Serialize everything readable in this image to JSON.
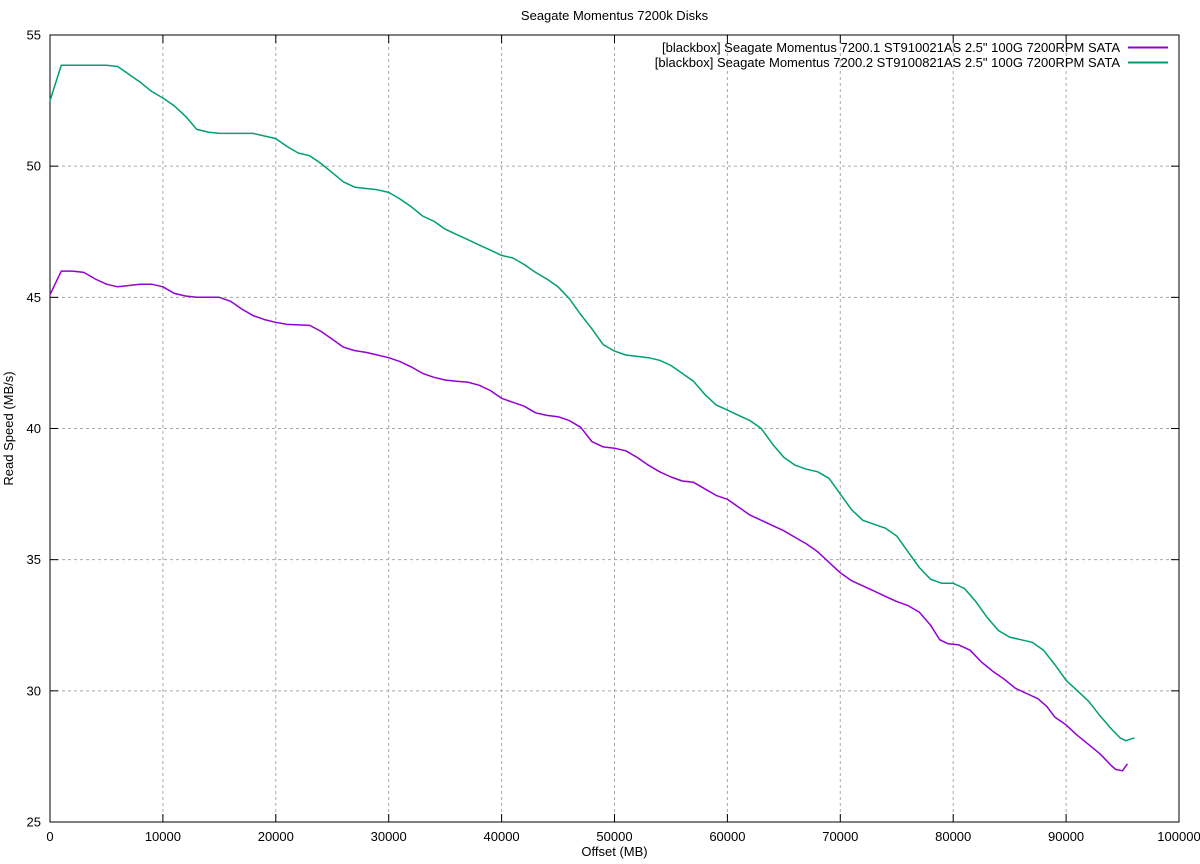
{
  "chart_data": {
    "type": "line",
    "title": "Seagate Momentus 7200k Disks",
    "xlabel": "Offset (MB)",
    "ylabel": "Read Speed (MB/s)",
    "xlim": [
      0,
      100000
    ],
    "ylim": [
      25,
      55
    ],
    "xticks": [
      0,
      10000,
      20000,
      30000,
      40000,
      50000,
      60000,
      70000,
      80000,
      90000,
      100000
    ],
    "yticks": [
      25,
      30,
      35,
      40,
      45,
      50,
      55
    ],
    "grid": true,
    "legend_position": "top-right",
    "colors": {
      "background": "#ffffff",
      "border": "#000000",
      "grid": "#a8a8a8"
    },
    "series": [
      {
        "name": "[blackbox] Seagate Momentus 7200.1 ST910021AS 2.5\" 100G 7200RPM SATA",
        "color": "#9400d3",
        "points": [
          [
            0,
            45.1
          ],
          [
            1000,
            46.0
          ],
          [
            2000,
            46.0
          ],
          [
            3000,
            45.95
          ],
          [
            4000,
            45.7
          ],
          [
            5000,
            45.5
          ],
          [
            6000,
            45.4
          ],
          [
            7000,
            45.45
          ],
          [
            8000,
            45.5
          ],
          [
            9000,
            45.5
          ],
          [
            10000,
            45.4
          ],
          [
            11000,
            45.15
          ],
          [
            12000,
            45.05
          ],
          [
            13000,
            45.0
          ],
          [
            14000,
            45.0
          ],
          [
            15000,
            45.0
          ],
          [
            16000,
            44.85
          ],
          [
            17000,
            44.55
          ],
          [
            18000,
            44.3
          ],
          [
            19000,
            44.15
          ],
          [
            20000,
            44.05
          ],
          [
            21000,
            43.97
          ],
          [
            22000,
            43.95
          ],
          [
            23000,
            43.93
          ],
          [
            24000,
            43.7
          ],
          [
            25000,
            43.4
          ],
          [
            26000,
            43.1
          ],
          [
            27000,
            42.97
          ],
          [
            28000,
            42.9
          ],
          [
            29000,
            42.8
          ],
          [
            30000,
            42.7
          ],
          [
            31000,
            42.55
          ],
          [
            32000,
            42.35
          ],
          [
            33000,
            42.1
          ],
          [
            34000,
            41.95
          ],
          [
            35000,
            41.85
          ],
          [
            36000,
            41.8
          ],
          [
            37000,
            41.77
          ],
          [
            38000,
            41.65
          ],
          [
            39000,
            41.45
          ],
          [
            40000,
            41.15
          ],
          [
            41000,
            41.0
          ],
          [
            42000,
            40.85
          ],
          [
            43000,
            40.6
          ],
          [
            44000,
            40.5
          ],
          [
            45000,
            40.45
          ],
          [
            46000,
            40.3
          ],
          [
            47000,
            40.05
          ],
          [
            48000,
            39.5
          ],
          [
            49000,
            39.3
          ],
          [
            50000,
            39.25
          ],
          [
            51000,
            39.15
          ],
          [
            52000,
            38.9
          ],
          [
            53000,
            38.6
          ],
          [
            54000,
            38.35
          ],
          [
            55000,
            38.15
          ],
          [
            56000,
            38.0
          ],
          [
            57000,
            37.95
          ],
          [
            58000,
            37.7
          ],
          [
            59000,
            37.45
          ],
          [
            60000,
            37.3
          ],
          [
            61000,
            37.0
          ],
          [
            62000,
            36.7
          ],
          [
            63000,
            36.5
          ],
          [
            64000,
            36.3
          ],
          [
            65000,
            36.1
          ],
          [
            66000,
            35.85
          ],
          [
            67000,
            35.6
          ],
          [
            68000,
            35.3
          ],
          [
            69000,
            34.9
          ],
          [
            70000,
            34.5
          ],
          [
            71000,
            34.2
          ],
          [
            72000,
            34.0
          ],
          [
            73000,
            33.8
          ],
          [
            74000,
            33.6
          ],
          [
            75000,
            33.4
          ],
          [
            76000,
            33.25
          ],
          [
            77000,
            33.0
          ],
          [
            78000,
            32.5
          ],
          [
            78800,
            31.95
          ],
          [
            79500,
            31.8
          ],
          [
            80500,
            31.75
          ],
          [
            81500,
            31.55
          ],
          [
            82500,
            31.1
          ],
          [
            83500,
            30.75
          ],
          [
            84500,
            30.45
          ],
          [
            85500,
            30.1
          ],
          [
            86500,
            29.9
          ],
          [
            87500,
            29.7
          ],
          [
            88300,
            29.4
          ],
          [
            89000,
            29.0
          ],
          [
            90000,
            28.7
          ],
          [
            91000,
            28.3
          ],
          [
            92000,
            27.95
          ],
          [
            93000,
            27.6
          ],
          [
            94000,
            27.15
          ],
          [
            94400,
            27.0
          ],
          [
            95000,
            26.95
          ],
          [
            95400,
            27.2
          ]
        ]
      },
      {
        "name": "[blackbox] Seagate Momentus 7200.2 ST9100821AS 2.5\" 100G 7200RPM SATA",
        "color": "#009e73",
        "points": [
          [
            0,
            52.5
          ],
          [
            1000,
            53.85
          ],
          [
            2000,
            53.85
          ],
          [
            3000,
            53.85
          ],
          [
            4000,
            53.85
          ],
          [
            5000,
            53.85
          ],
          [
            6000,
            53.8
          ],
          [
            7000,
            53.5
          ],
          [
            8000,
            53.2
          ],
          [
            9000,
            52.85
          ],
          [
            10000,
            52.6
          ],
          [
            11000,
            52.3
          ],
          [
            12000,
            51.9
          ],
          [
            13000,
            51.4
          ],
          [
            14000,
            51.3
          ],
          [
            15000,
            51.25
          ],
          [
            16000,
            51.25
          ],
          [
            17000,
            51.25
          ],
          [
            18000,
            51.25
          ],
          [
            19000,
            51.15
          ],
          [
            20000,
            51.05
          ],
          [
            21000,
            50.75
          ],
          [
            22000,
            50.5
          ],
          [
            23000,
            50.4
          ],
          [
            24000,
            50.1
          ],
          [
            25000,
            49.75
          ],
          [
            26000,
            49.4
          ],
          [
            27000,
            49.2
          ],
          [
            28000,
            49.15
          ],
          [
            29000,
            49.1
          ],
          [
            30000,
            49.0
          ],
          [
            31000,
            48.75
          ],
          [
            32000,
            48.45
          ],
          [
            33000,
            48.1
          ],
          [
            34000,
            47.9
          ],
          [
            35000,
            47.6
          ],
          [
            36000,
            47.4
          ],
          [
            37000,
            47.2
          ],
          [
            38000,
            47.0
          ],
          [
            39000,
            46.8
          ],
          [
            40000,
            46.6
          ],
          [
            41000,
            46.5
          ],
          [
            42000,
            46.25
          ],
          [
            43000,
            45.95
          ],
          [
            44000,
            45.7
          ],
          [
            45000,
            45.4
          ],
          [
            46000,
            44.95
          ],
          [
            47000,
            44.35
          ],
          [
            48000,
            43.8
          ],
          [
            49000,
            43.2
          ],
          [
            50000,
            42.95
          ],
          [
            51000,
            42.8
          ],
          [
            52000,
            42.75
          ],
          [
            53000,
            42.7
          ],
          [
            54000,
            42.6
          ],
          [
            55000,
            42.4
          ],
          [
            56000,
            42.1
          ],
          [
            57000,
            41.8
          ],
          [
            58000,
            41.3
          ],
          [
            59000,
            40.9
          ],
          [
            60000,
            40.7
          ],
          [
            61000,
            40.5
          ],
          [
            62000,
            40.3
          ],
          [
            63000,
            40.0
          ],
          [
            64000,
            39.4
          ],
          [
            65000,
            38.9
          ],
          [
            66000,
            38.6
          ],
          [
            67000,
            38.45
          ],
          [
            68000,
            38.35
          ],
          [
            69000,
            38.1
          ],
          [
            70000,
            37.5
          ],
          [
            71000,
            36.9
          ],
          [
            72000,
            36.5
          ],
          [
            73000,
            36.35
          ],
          [
            74000,
            36.2
          ],
          [
            75000,
            35.9
          ],
          [
            76000,
            35.3
          ],
          [
            77000,
            34.7
          ],
          [
            78000,
            34.25
          ],
          [
            79000,
            34.1
          ],
          [
            80000,
            34.1
          ],
          [
            81000,
            33.9
          ],
          [
            82000,
            33.4
          ],
          [
            83000,
            32.8
          ],
          [
            84000,
            32.3
          ],
          [
            85000,
            32.05
          ],
          [
            86000,
            31.95
          ],
          [
            87000,
            31.85
          ],
          [
            88000,
            31.55
          ],
          [
            89000,
            31.0
          ],
          [
            90000,
            30.4
          ],
          [
            91000,
            30.0
          ],
          [
            92000,
            29.6
          ],
          [
            93000,
            29.05
          ],
          [
            94000,
            28.55
          ],
          [
            94800,
            28.2
          ],
          [
            95300,
            28.1
          ],
          [
            96000,
            28.2
          ]
        ]
      }
    ]
  }
}
